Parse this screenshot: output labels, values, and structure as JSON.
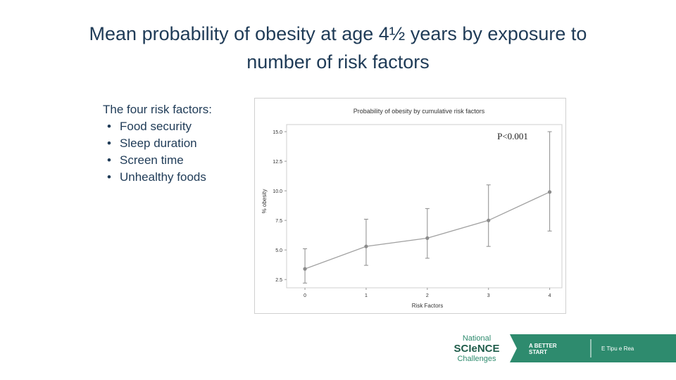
{
  "slide": {
    "title_line1": "Mean probability of obesity at age 4½ years by exposure to",
    "title_line2": "number of risk factors"
  },
  "risk_factors": {
    "heading": "The four risk factors:",
    "bullet": "•",
    "items": [
      "Food security",
      "Sleep duration",
      "Screen time",
      "Unhealthy foods"
    ]
  },
  "chart_data": {
    "type": "line",
    "title": "Probability of obesity by cumulative risk factors",
    "xlabel": "Risk  Factors",
    "ylabel": "% obesity",
    "x": [
      0,
      1,
      2,
      3,
      4
    ],
    "y_ticks": [
      "2.5",
      "5.0",
      "7.5",
      "10.0",
      "12.5",
      "15.0"
    ],
    "ylim": [
      1.8,
      15.6
    ],
    "xlim": [
      -0.3,
      4.2
    ],
    "series": [
      {
        "values": [
          3.4,
          5.3,
          6.0,
          7.5,
          9.9
        ],
        "lower": [
          2.2,
          3.7,
          4.3,
          5.3,
          6.6
        ],
        "upper": [
          5.1,
          7.6,
          8.5,
          10.5,
          15.0
        ]
      }
    ],
    "annotation": "P<0.001",
    "grid": false,
    "colors": {
      "line": "#a0a0a0",
      "marker": "#8c8c8c",
      "errorbar": "#8c8c8c"
    }
  },
  "logo": {
    "line1": "National",
    "line2": "SCIeNCE",
    "line3": "Challenges",
    "tagline1": "A BETTER",
    "tagline2": "START",
    "motto": "E Tipu e Rea",
    "colors": {
      "green": "#2e8b6e",
      "dark": "#1f5c4a",
      "text_white": "#ffffff"
    }
  }
}
